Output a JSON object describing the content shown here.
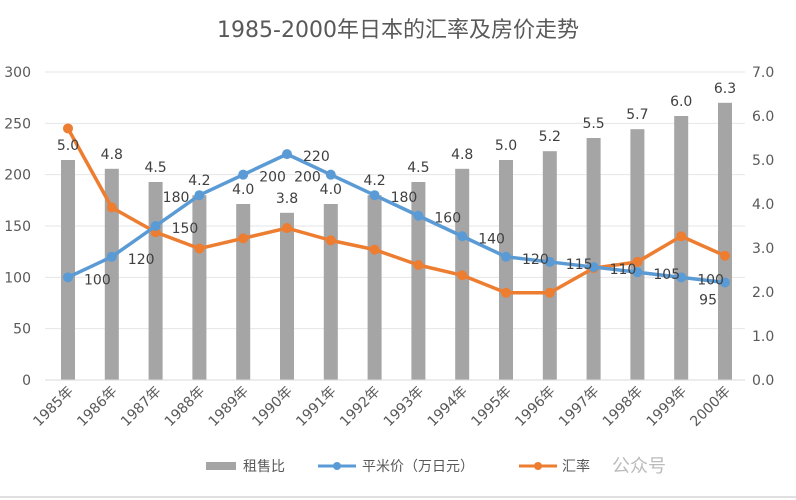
{
  "chart_data": {
    "type": "bar+line",
    "title": "1985-2000年日本的汇率及房价走势",
    "categories": [
      "1985年",
      "1986年",
      "1987年",
      "1988年",
      "1989年",
      "1990年",
      "1991年",
      "1992年",
      "1993年",
      "1994年",
      "1995年",
      "1996年",
      "1997年",
      "1998年",
      "1999年",
      "2000年"
    ],
    "left_axis": {
      "range": [
        0,
        300
      ],
      "ticks": [
        "0",
        "50",
        "100",
        "150",
        "200",
        "250",
        "300"
      ]
    },
    "right_axis": {
      "range": [
        0,
        7
      ],
      "ticks": [
        "0.0",
        "1.0",
        "2.0",
        "3.0",
        "4.0",
        "5.0",
        "6.0",
        "7.0"
      ]
    },
    "grid": true,
    "legend_position": "bottom",
    "series": [
      {
        "name": "租售比",
        "type": "bar",
        "axis": "right",
        "color": "#a5a5a5",
        "values": [
          5.0,
          4.8,
          4.5,
          4.2,
          4.0,
          3.8,
          4.0,
          4.2,
          4.5,
          4.8,
          5.0,
          5.2,
          5.5,
          5.7,
          6.0,
          6.3
        ],
        "labels": [
          "5.0",
          "4.8",
          "4.5",
          "4.2",
          "4.0",
          "3.8",
          "4.0",
          "4.2",
          "4.5",
          "4.8",
          "5.0",
          "5.2",
          "5.5",
          "5.7",
          "6.0",
          "6.3"
        ]
      },
      {
        "name": "平米价（万日元）",
        "type": "line",
        "axis": "left",
        "color": "#5b9bd5",
        "values": [
          100,
          120,
          150,
          180,
          200,
          220,
          200,
          180,
          160,
          140,
          120,
          115,
          110,
          105,
          100,
          95
        ],
        "labels": [
          "100",
          "120",
          "150",
          "180",
          "200",
          "220",
          "200",
          "180",
          "160",
          "140",
          "120",
          "115",
          "110",
          "105",
          "100",
          "95"
        ]
      },
      {
        "name": "汇率",
        "type": "line",
        "axis": "left",
        "color": "#ed7d31",
        "values": [
          245,
          168,
          144,
          128,
          138,
          148,
          136,
          127,
          112,
          102,
          85,
          85,
          109,
          115,
          140,
          121
        ]
      }
    ]
  },
  "watermark": "公众号"
}
